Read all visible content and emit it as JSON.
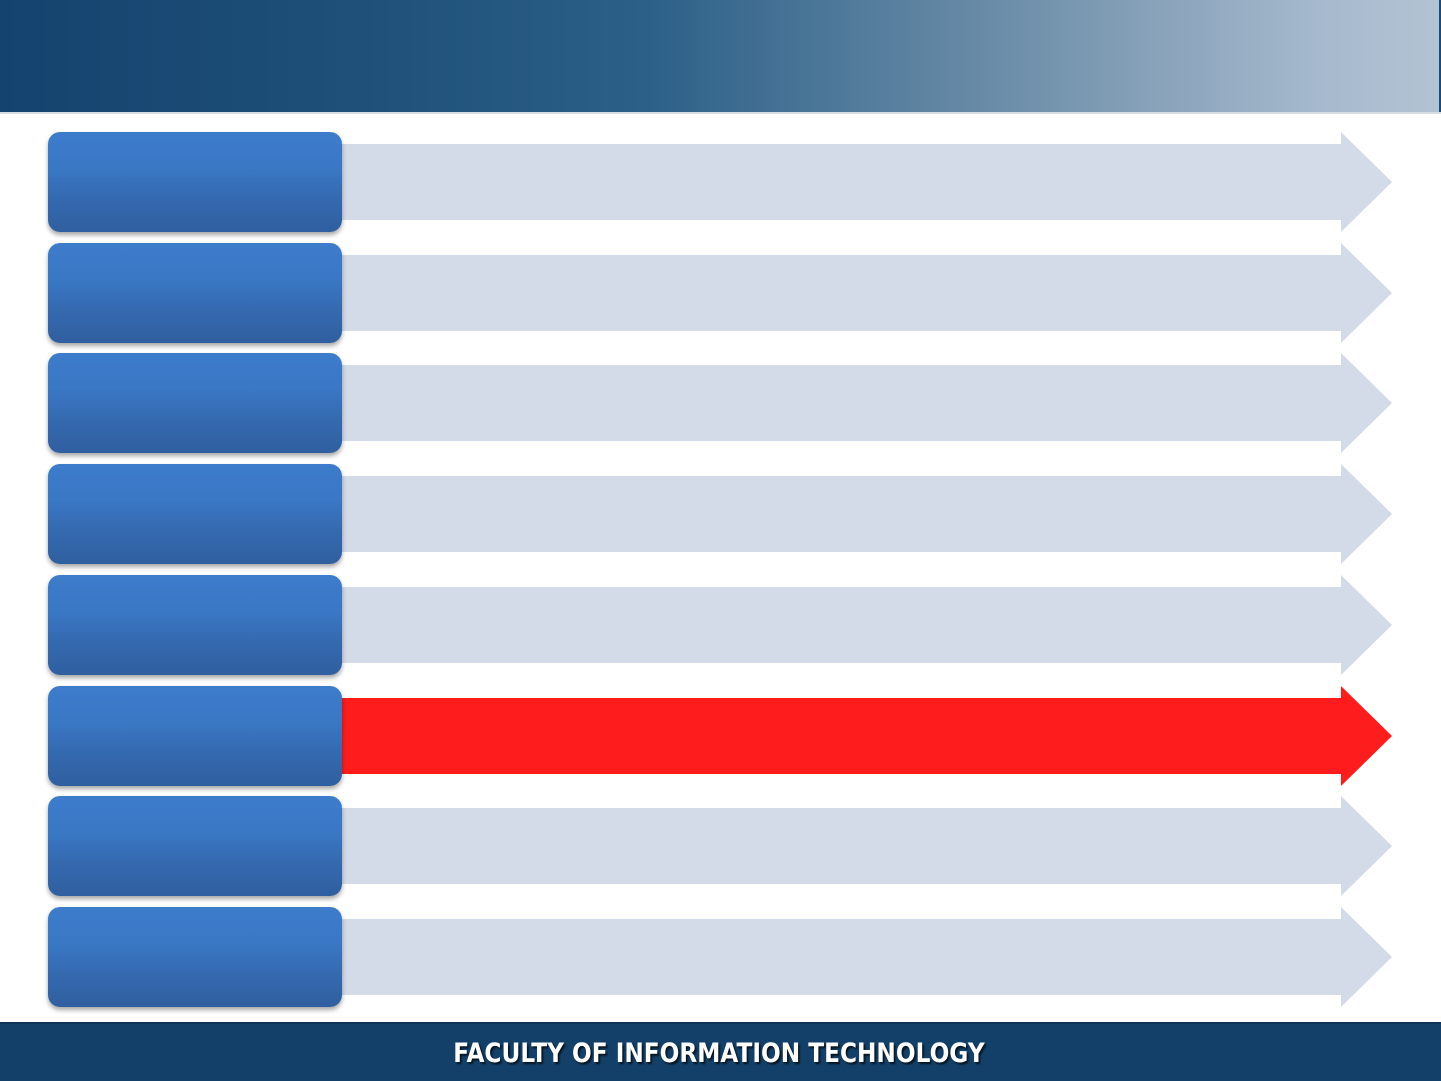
{
  "footer": {
    "label": "FACULTY OF INFORMATION TECHNOLOGY"
  },
  "agenda": {
    "active_index": 5,
    "inactive_arrow_color": "#d3dae8",
    "active_arrow_color": "#ff1c1c",
    "item_color": "#3a78c5",
    "items": [
      {
        "label": ""
      },
      {
        "label": ""
      },
      {
        "label": ""
      },
      {
        "label": ""
      },
      {
        "label": ""
      },
      {
        "label": ""
      },
      {
        "label": ""
      },
      {
        "label": ""
      }
    ]
  }
}
